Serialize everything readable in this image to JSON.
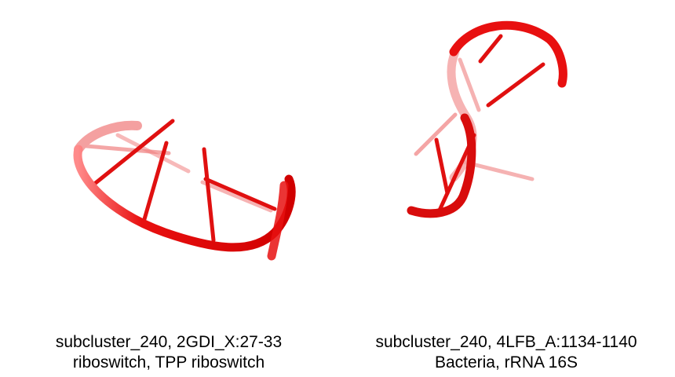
{
  "panels": [
    {
      "caption_line1": "subcluster_240, 2GDI_X:27-33",
      "caption_line2": "riboswitch, TPP riboswitch"
    },
    {
      "caption_line1": "subcluster_240, 4LFB_A:1134-1140",
      "caption_line2": "Bacteria, rRNA 16S"
    }
  ],
  "colors": {
    "backbone": "#e81010",
    "backbone_dark": "#b40000"
  }
}
